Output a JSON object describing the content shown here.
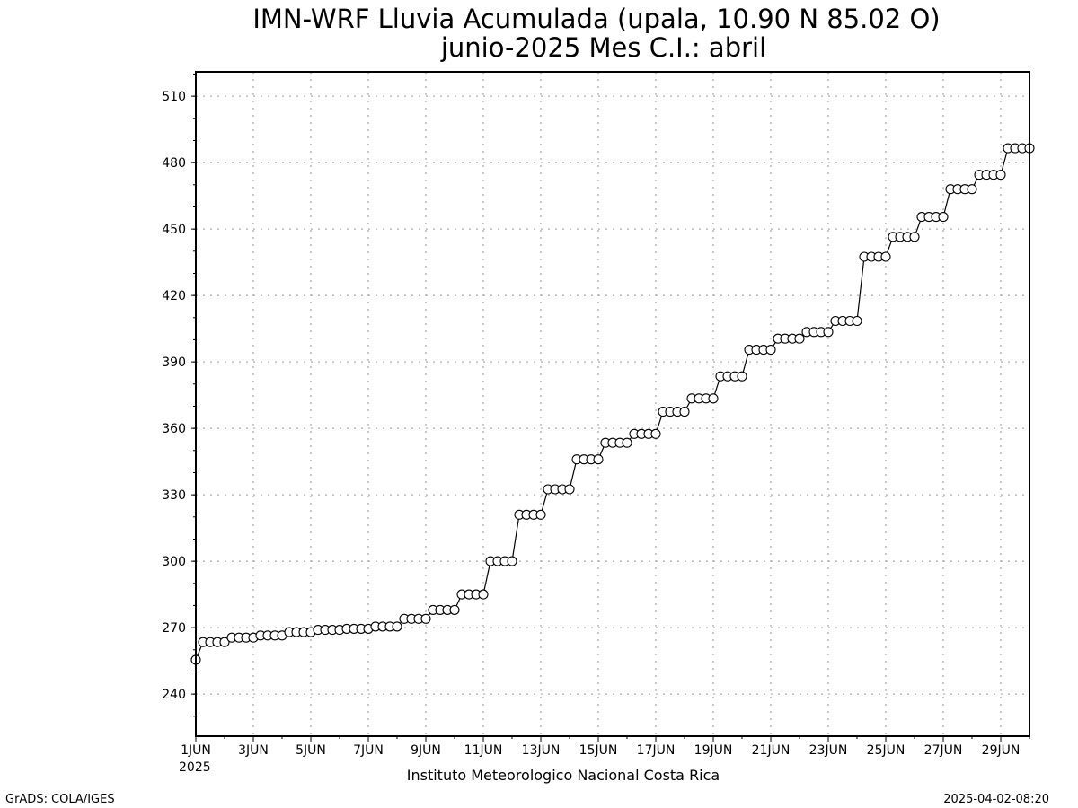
{
  "chart_data": {
    "type": "line",
    "title_line1": "IMN-WRF  Lluvia Acumulada (upala, 10.90  N 85.02  O)",
    "title_line2": "junio-2025 Mes C.I.: abril",
    "year_label": "2025",
    "footer_center": "Instituto Meteorologico Nacional Costa Rica",
    "footer_left": "GrADS: COLA/IGES",
    "footer_right": "2025-04-02-08:20",
    "x_ticks": [
      {
        "day": 1,
        "label": "1JUN"
      },
      {
        "day": 3,
        "label": "3JUN"
      },
      {
        "day": 5,
        "label": "5JUN"
      },
      {
        "day": 7,
        "label": "7JUN"
      },
      {
        "day": 9,
        "label": "9JUN"
      },
      {
        "day": 11,
        "label": "11JUN"
      },
      {
        "day": 13,
        "label": "13JUN"
      },
      {
        "day": 15,
        "label": "15JUN"
      },
      {
        "day": 17,
        "label": "17JUN"
      },
      {
        "day": 19,
        "label": "19JUN"
      },
      {
        "day": 21,
        "label": "21JUN"
      },
      {
        "day": 23,
        "label": "23JUN"
      },
      {
        "day": 25,
        "label": "25JUN"
      },
      {
        "day": 27,
        "label": "27JUN"
      },
      {
        "day": 29,
        "label": "29JUN"
      }
    ],
    "y_ticks": [
      240,
      270,
      300,
      330,
      360,
      390,
      420,
      450,
      480,
      510
    ],
    "xlim": [
      1,
      30
    ],
    "ylim": [
      221,
      521
    ],
    "grid": true,
    "line_color": "#000000",
    "marker": "open-circle",
    "steps_per_day": 4,
    "values": [
      255.5,
      263.5,
      263.5,
      263.5,
      263.5,
      265.5,
      265.5,
      265.5,
      265.5,
      266.5,
      266.5,
      266.5,
      266.5,
      268,
      268,
      268,
      268,
      269,
      269,
      269,
      269,
      269.5,
      269.5,
      269.5,
      269.5,
      270.5,
      270.5,
      270.5,
      270.5,
      274,
      274,
      274,
      274,
      278,
      278,
      278,
      278,
      285,
      285,
      285,
      285,
      300,
      300,
      300,
      300,
      321,
      321,
      321,
      321,
      332.5,
      332.5,
      332.5,
      332.5,
      346,
      346,
      346,
      346,
      353.5,
      353.5,
      353.5,
      353.5,
      357.5,
      357.5,
      357.5,
      357.5,
      367.5,
      367.5,
      367.5,
      367.5,
      373.5,
      373.5,
      373.5,
      373.5,
      383.5,
      383.5,
      383.5,
      383.5,
      395.5,
      395.5,
      395.5,
      395.5,
      400.5,
      400.5,
      400.5,
      400.5,
      403.5,
      403.5,
      403.5,
      403.5,
      408.5,
      408.5,
      408.5,
      408.5,
      437.5,
      437.5,
      437.5,
      437.5,
      446.5,
      446.5,
      446.5,
      446.5,
      455.5,
      455.5,
      455.5,
      455.5,
      468,
      468,
      468,
      468,
      474.5,
      474.5,
      474.5,
      474.5,
      486.5,
      486.5,
      486.5,
      486.5
    ]
  }
}
